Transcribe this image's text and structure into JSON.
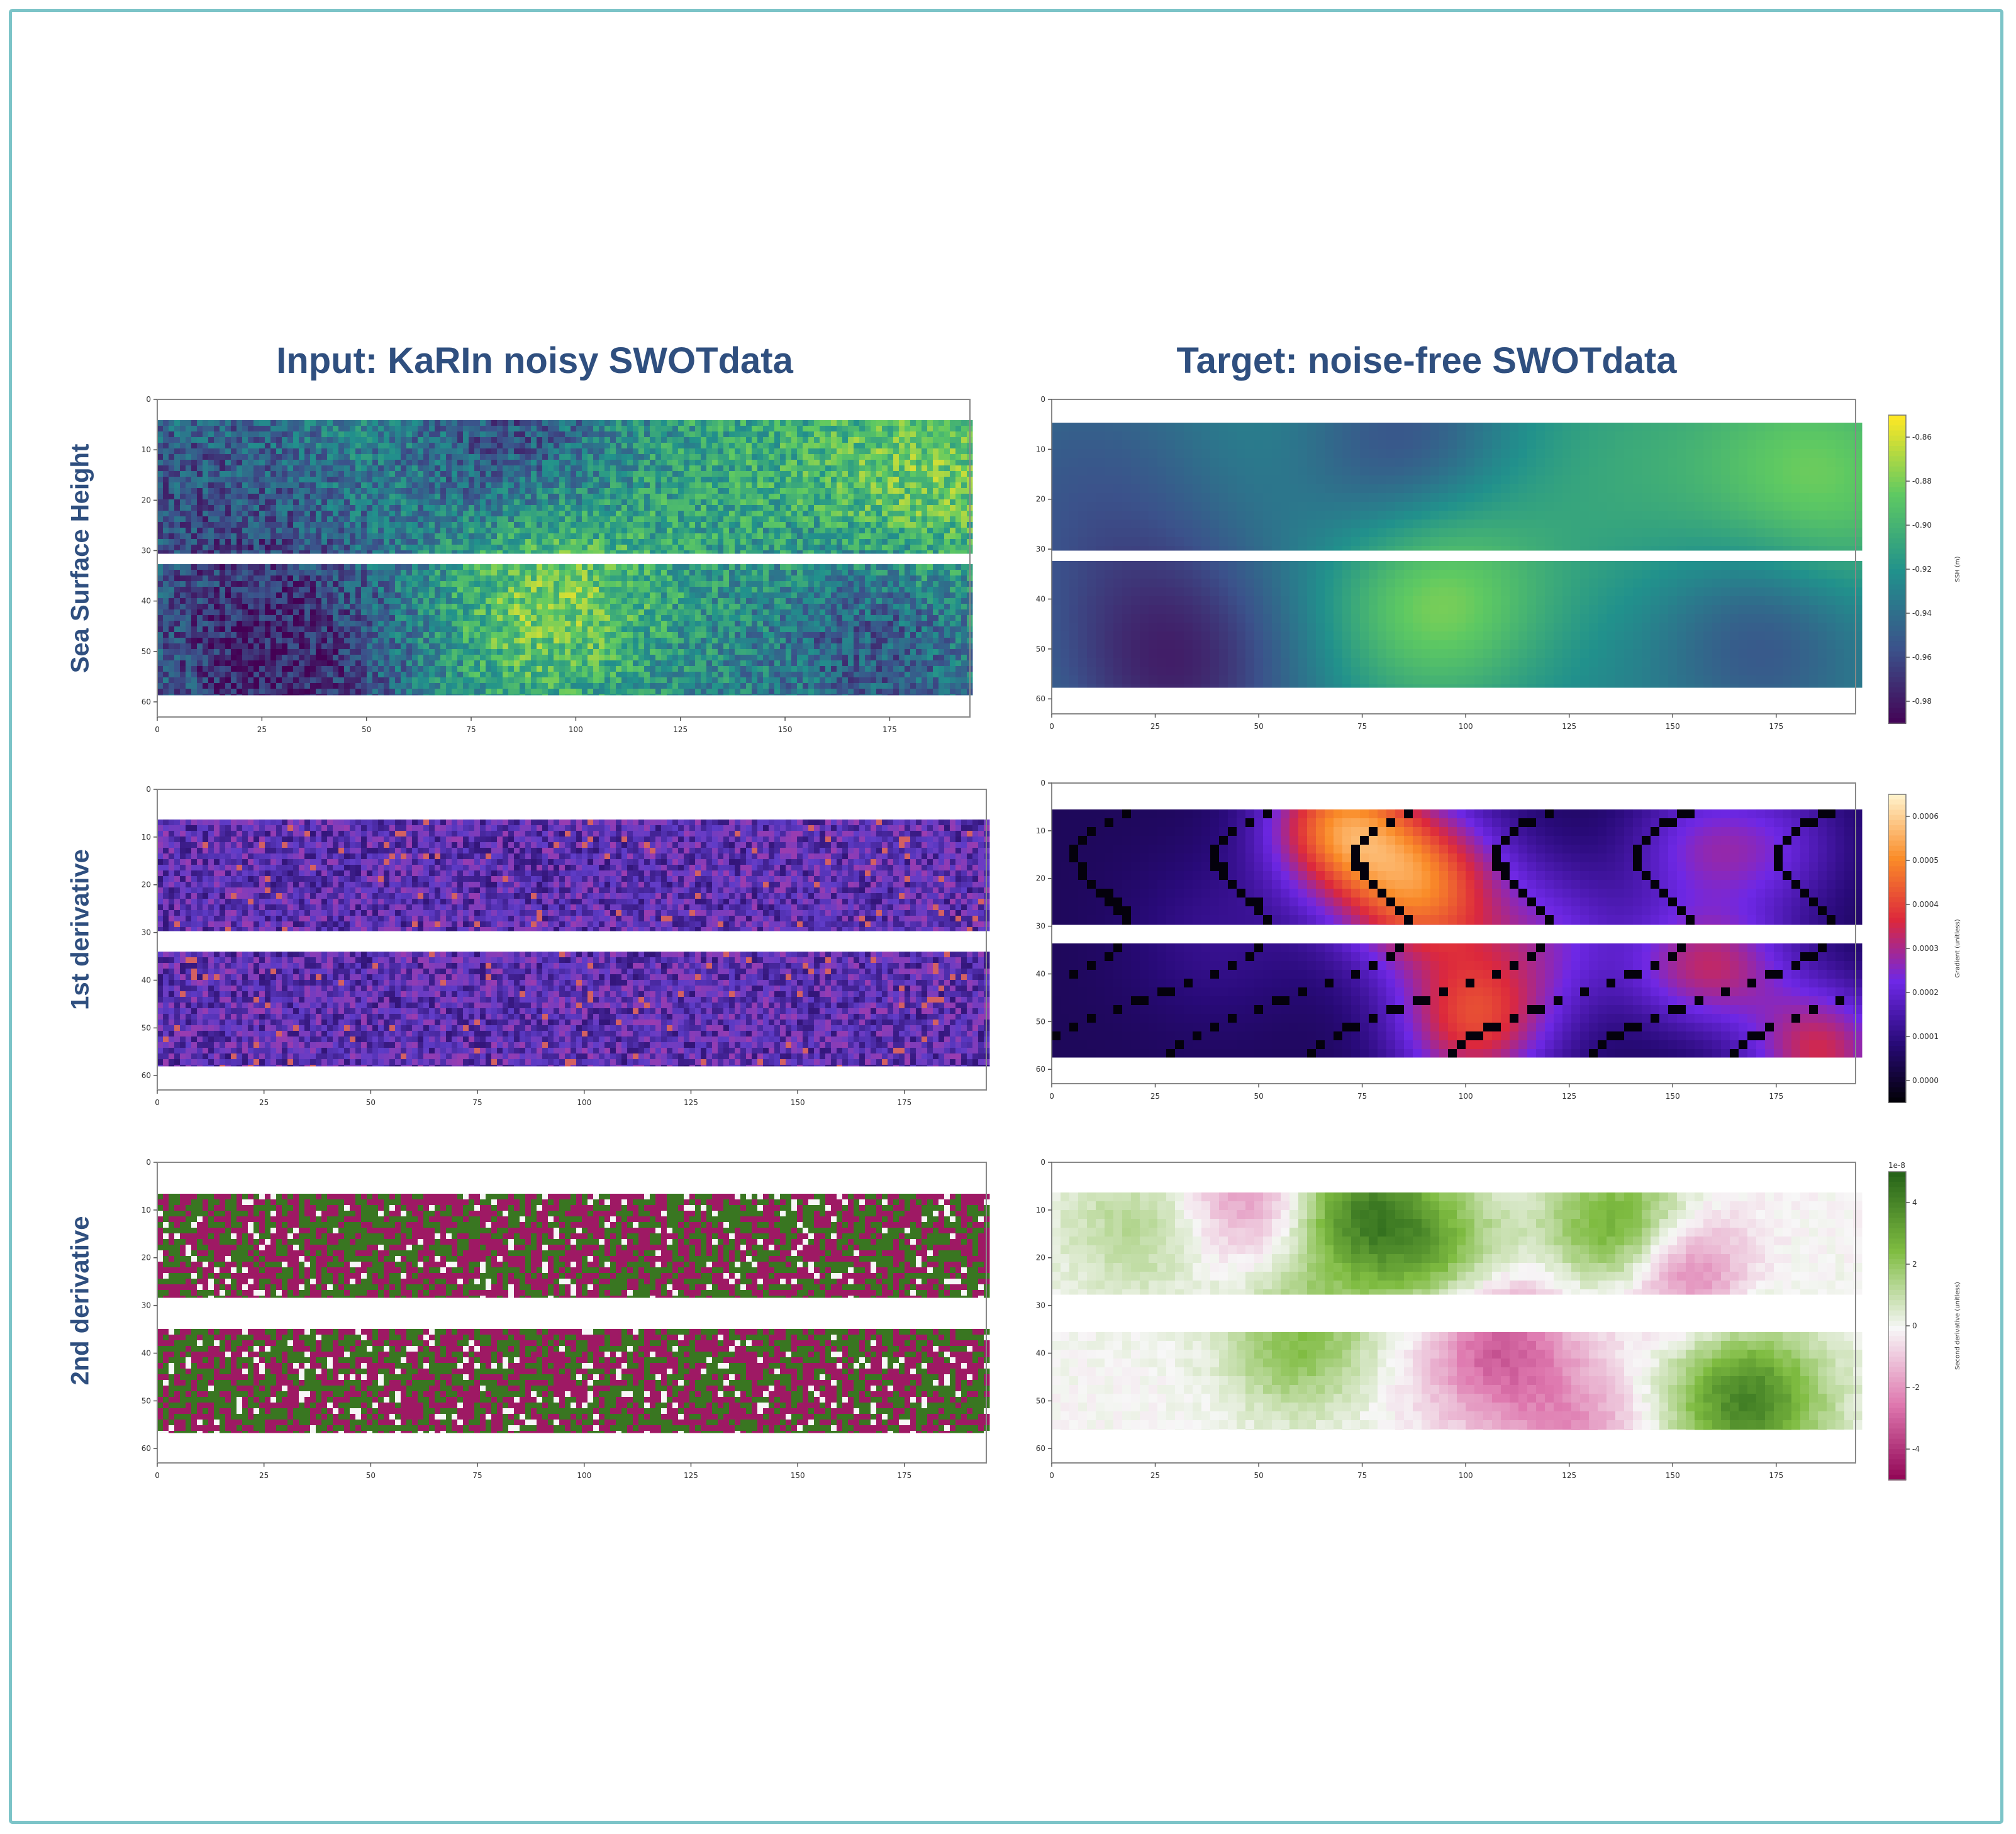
{
  "titles": {
    "left": "Input: KaRIn noisy SWOTdata",
    "right": "Target: noise-free SWOTdata"
  },
  "rows": [
    {
      "label": "Sea Surface Height"
    },
    {
      "label": "1st derivative"
    },
    {
      "label": "2nd derivative"
    }
  ],
  "chart_data": [
    {
      "id": "ssh-input",
      "type": "heatmap",
      "colormap": "viridis",
      "noisy": true,
      "xticks": [
        "0",
        "25",
        "50",
        "75",
        "100",
        "125",
        "150",
        "175"
      ],
      "yticks": [
        "0",
        "10",
        "20",
        "30",
        "40",
        "50",
        "60"
      ]
    },
    {
      "id": "ssh-target",
      "type": "heatmap",
      "colormap": "viridis",
      "noisy": false,
      "xticks": [
        "0",
        "25",
        "50",
        "75",
        "100",
        "125",
        "150",
        "175"
      ],
      "yticks": [
        "0",
        "10",
        "20",
        "30",
        "40",
        "50",
        "60"
      ],
      "colorbar": {
        "ticks": [
          "-0.98",
          "-0.96",
          "-0.94",
          "-0.92",
          "-0.90",
          "-0.88",
          "-0.86"
        ],
        "label": "SSH (m)"
      }
    },
    {
      "id": "d1-input",
      "type": "heatmap",
      "colormap": "plasma-dark",
      "noisy": true,
      "xticks": [
        "0",
        "25",
        "50",
        "75",
        "100",
        "125",
        "150",
        "175"
      ],
      "yticks": [
        "0",
        "10",
        "20",
        "30",
        "40",
        "50",
        "60"
      ]
    },
    {
      "id": "d1-target",
      "type": "heatmap",
      "colormap": "gnuplot",
      "noisy": false,
      "xticks": [
        "0",
        "25",
        "50",
        "75",
        "100",
        "125",
        "150",
        "175"
      ],
      "yticks": [
        "0",
        "10",
        "20",
        "30",
        "40",
        "50",
        "60"
      ],
      "colorbar": {
        "ticks": [
          "0.0000",
          "0.0001",
          "0.0002",
          "0.0003",
          "0.0004",
          "0.0005",
          "0.0006"
        ],
        "label": "Gradient (unitless)"
      }
    },
    {
      "id": "d2-input",
      "type": "heatmap",
      "colormap": "PiYG",
      "noisy": true,
      "xticks": [
        "0",
        "25",
        "50",
        "75",
        "100",
        "125",
        "150",
        "175"
      ],
      "yticks": [
        "0",
        "10",
        "20",
        "30",
        "40",
        "50",
        "60"
      ]
    },
    {
      "id": "d2-target",
      "type": "heatmap",
      "colormap": "PiYG",
      "noisy": false,
      "xticks": [
        "0",
        "25",
        "50",
        "75",
        "100",
        "125",
        "150",
        "175"
      ],
      "yticks": [
        "0",
        "10",
        "20",
        "30",
        "40",
        "50",
        "60"
      ],
      "colorbar": {
        "ticks": [
          "-4",
          "-2",
          "0",
          "2",
          "4"
        ],
        "label": "Second derivative (unitless)",
        "offset": "1e-8"
      }
    }
  ],
  "colors": {
    "frame": "#7cc4c8",
    "title": "#2f4f7f"
  }
}
